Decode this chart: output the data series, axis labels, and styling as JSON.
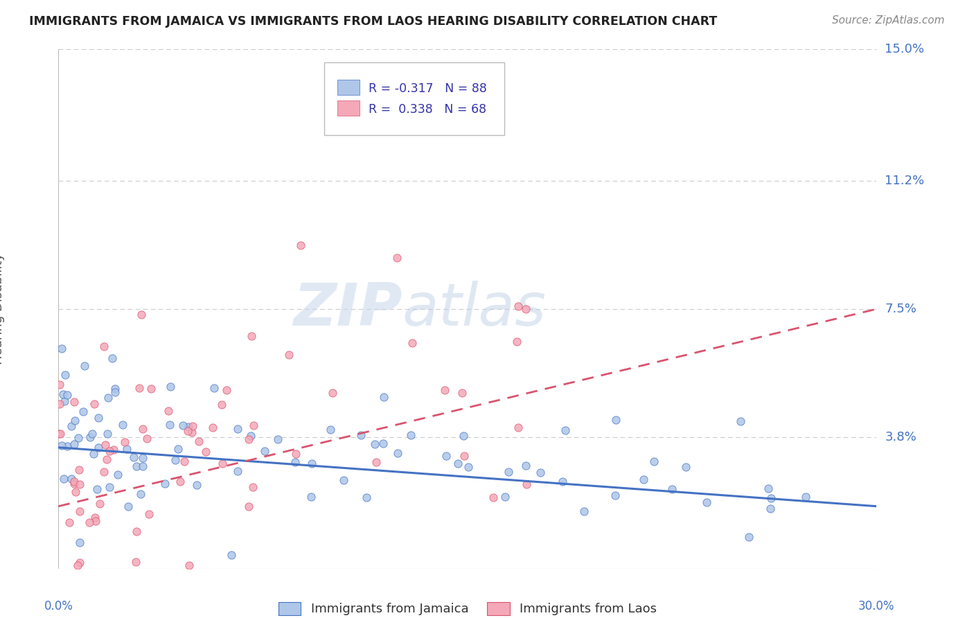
{
  "title": "IMMIGRANTS FROM JAMAICA VS IMMIGRANTS FROM LAOS HEARING DISABILITY CORRELATION CHART",
  "source": "Source: ZipAtlas.com",
  "ylabel": "Hearing Disability",
  "xlim": [
    0.0,
    0.3
  ],
  "ylim": [
    0.0,
    0.15
  ],
  "yticks": [
    0.038,
    0.075,
    0.112,
    0.15
  ],
  "ytick_labels": [
    "3.8%",
    "7.5%",
    "11.2%",
    "15.0%"
  ],
  "xtick_labels": [
    "0.0%",
    "30.0%"
  ],
  "legend1_label": "R = -0.317   N = 88",
  "legend2_label": "R =  0.338   N = 68",
  "legend_bottom1": "Immigrants from Jamaica",
  "legend_bottom2": "Immigrants from Laos",
  "jamaica_color": "#aec6e8",
  "laos_color": "#f4a8b8",
  "jamaica_line_color": "#4472c4",
  "laos_line_color": "#d9546e",
  "jamaica_R": -0.317,
  "jamaica_N": 88,
  "laos_R": 0.338,
  "laos_N": 68,
  "watermark_zip": "ZIP",
  "watermark_atlas": "atlas",
  "background_color": "#ffffff",
  "grid_color": "#cccccc",
  "title_color": "#222222",
  "tick_label_color": "#4472c4",
  "jamaica_trend_start_y": 0.035,
  "jamaica_trend_end_y": 0.018,
  "laos_trend_start_y": 0.018,
  "laos_trend_end_y": 0.075
}
